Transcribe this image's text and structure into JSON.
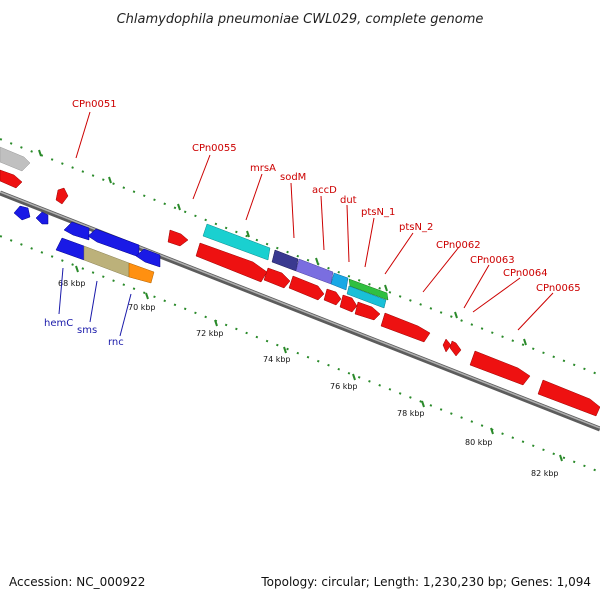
{
  "title": "Chlamydophila pneumoniae CWL029, complete genome",
  "footer": {
    "accession": "Accession: NC_000922",
    "summary": "Topology: circular; Length: 1,230,230 bp; Genes: 1,094"
  },
  "colors": {
    "forward_label": "#cc0000",
    "reverse_label": "#1a1aaa",
    "dots": "#2a8a2a",
    "backbone": "#808080"
  },
  "scale": {
    "ticks": [
      "68 kbp",
      "70 kbp",
      "72 kbp",
      "74 kbp",
      "76 kbp",
      "78 kbp",
      "80 kbp",
      "82 kbp"
    ]
  },
  "labels": {
    "forward": [
      "CPn0051",
      "CPn0055",
      "mrsA",
      "sodM",
      "accD",
      "dut",
      "ptsN_1",
      "ptsN_2",
      "CPn0062",
      "CPn0063",
      "CPn0064",
      "CPn0065"
    ],
    "reverse": [
      "hemC",
      "sms",
      "rnc"
    ]
  }
}
